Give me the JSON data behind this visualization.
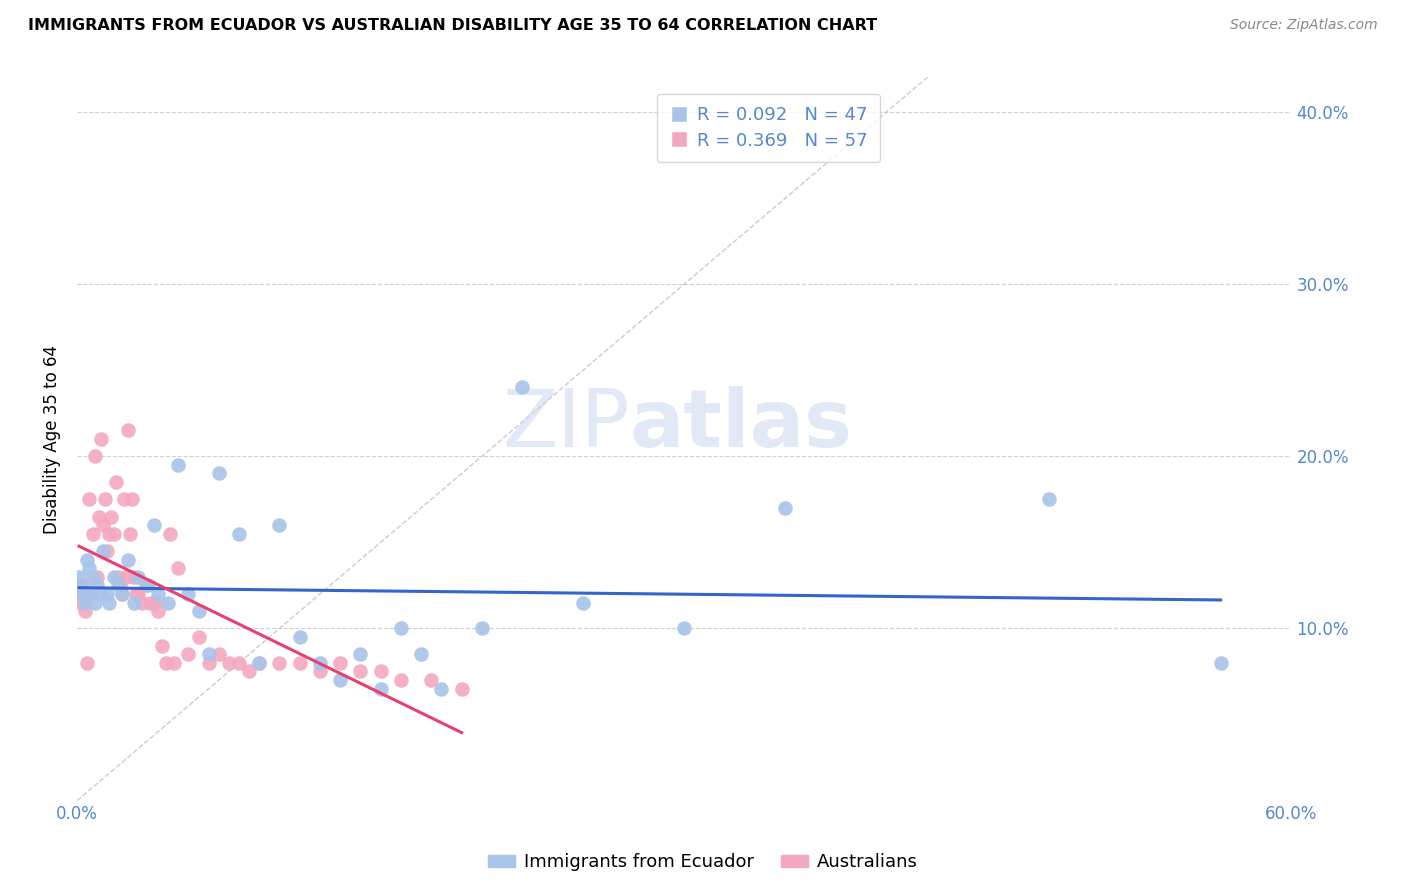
{
  "title": "IMMIGRANTS FROM ECUADOR VS AUSTRALIAN DISABILITY AGE 35 TO 64 CORRELATION CHART",
  "source": "Source: ZipAtlas.com",
  "ylabel": "Disability Age 35 to 64",
  "xlim": [
    0.0,
    0.6
  ],
  "ylim": [
    0.0,
    0.42
  ],
  "xticks": [
    0.0,
    0.1,
    0.2,
    0.3,
    0.4,
    0.5,
    0.6
  ],
  "xtick_labels": [
    "0.0%",
    "",
    "",
    "",
    "",
    "",
    "60.0%"
  ],
  "yticks": [
    0.0,
    0.1,
    0.2,
    0.3,
    0.4
  ],
  "right_ytick_labels": [
    "",
    "10.0%",
    "20.0%",
    "30.0%",
    "40.0%"
  ],
  "blue_R": 0.092,
  "blue_N": 47,
  "pink_R": 0.369,
  "pink_N": 57,
  "blue_color": "#a8c4e8",
  "pink_color": "#f4a8c0",
  "blue_line_color": "#3366cc",
  "pink_line_color": "#e84070",
  "grid_color": "#d0d0d0",
  "axis_color": "#5588cc",
  "watermark_color": "#c8d8ee",
  "legend_label_blue": "Immigrants from Ecuador",
  "legend_label_pink": "Australians",
  "blue_scatter_x": [
    0.001,
    0.002,
    0.003,
    0.004,
    0.005,
    0.006,
    0.007,
    0.008,
    0.009,
    0.01,
    0.012,
    0.013,
    0.015,
    0.016,
    0.018,
    0.02,
    0.022,
    0.025,
    0.028,
    0.03,
    0.035,
    0.038,
    0.04,
    0.045,
    0.05,
    0.055,
    0.06,
    0.065,
    0.07,
    0.08,
    0.09,
    0.1,
    0.11,
    0.12,
    0.13,
    0.14,
    0.15,
    0.16,
    0.17,
    0.18,
    0.2,
    0.22,
    0.25,
    0.3,
    0.35,
    0.48,
    0.565
  ],
  "blue_scatter_y": [
    0.13,
    0.125,
    0.12,
    0.115,
    0.14,
    0.135,
    0.12,
    0.13,
    0.115,
    0.125,
    0.12,
    0.145,
    0.12,
    0.115,
    0.13,
    0.125,
    0.12,
    0.14,
    0.115,
    0.13,
    0.125,
    0.16,
    0.12,
    0.115,
    0.195,
    0.12,
    0.11,
    0.085,
    0.19,
    0.155,
    0.08,
    0.16,
    0.095,
    0.08,
    0.07,
    0.085,
    0.065,
    0.1,
    0.085,
    0.065,
    0.1,
    0.24,
    0.115,
    0.1,
    0.17,
    0.175,
    0.08
  ],
  "pink_scatter_x": [
    0.001,
    0.002,
    0.003,
    0.004,
    0.005,
    0.006,
    0.007,
    0.008,
    0.009,
    0.01,
    0.011,
    0.012,
    0.013,
    0.014,
    0.015,
    0.016,
    0.017,
    0.018,
    0.019,
    0.02,
    0.021,
    0.022,
    0.023,
    0.024,
    0.025,
    0.026,
    0.027,
    0.028,
    0.029,
    0.03,
    0.032,
    0.034,
    0.036,
    0.038,
    0.04,
    0.042,
    0.044,
    0.046,
    0.048,
    0.05,
    0.055,
    0.06,
    0.065,
    0.07,
    0.075,
    0.08,
    0.085,
    0.09,
    0.1,
    0.11,
    0.12,
    0.13,
    0.14,
    0.15,
    0.16,
    0.175,
    0.19
  ],
  "pink_scatter_y": [
    0.12,
    0.115,
    0.125,
    0.11,
    0.08,
    0.175,
    0.12,
    0.155,
    0.2,
    0.13,
    0.165,
    0.21,
    0.16,
    0.175,
    0.145,
    0.155,
    0.165,
    0.155,
    0.185,
    0.13,
    0.125,
    0.12,
    0.175,
    0.13,
    0.215,
    0.155,
    0.175,
    0.13,
    0.12,
    0.12,
    0.115,
    0.125,
    0.115,
    0.115,
    0.11,
    0.09,
    0.08,
    0.155,
    0.08,
    0.135,
    0.085,
    0.095,
    0.08,
    0.085,
    0.08,
    0.08,
    0.075,
    0.08,
    0.08,
    0.08,
    0.075,
    0.08,
    0.075,
    0.075,
    0.07,
    0.07,
    0.065
  ]
}
